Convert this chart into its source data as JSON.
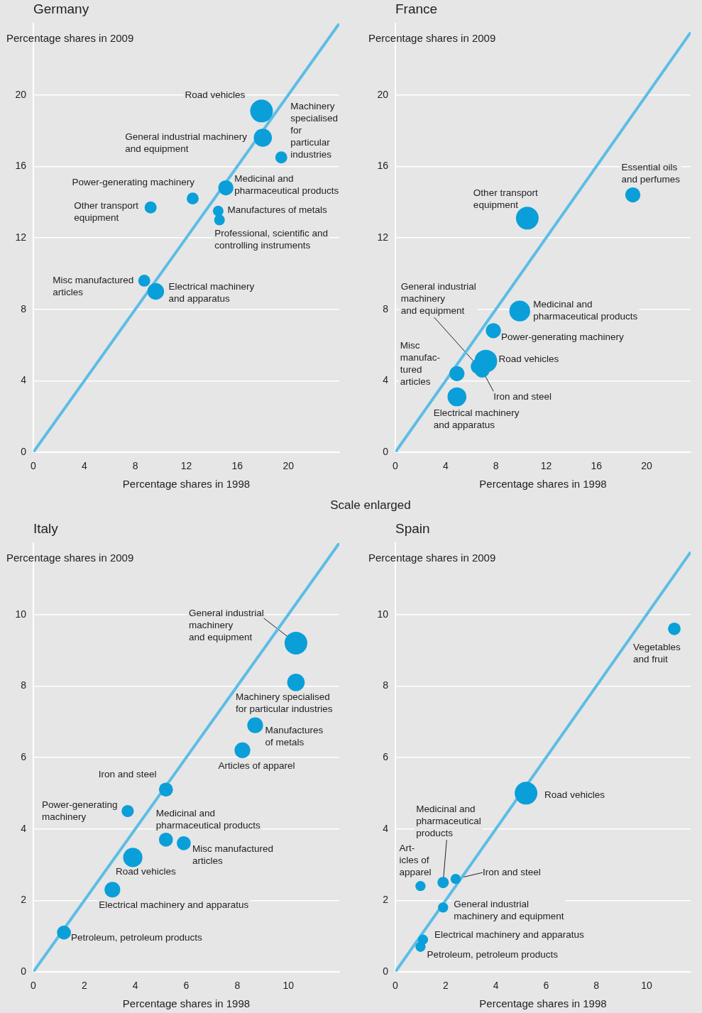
{
  "chart_data": [
    {
      "type": "bubble",
      "title": "Germany",
      "xlabel": "Percentage shares in 1998",
      "ylabel": "Percentage shares in 2009",
      "xlim": [
        0,
        24
      ],
      "ylim": [
        0,
        24
      ],
      "xticks": [
        0,
        4,
        8,
        12,
        16,
        20
      ],
      "yticks": [
        0,
        4,
        8,
        12,
        16,
        20
      ],
      "grid": "y",
      "series": [
        {
          "type": "line",
          "color": "#5cbde5",
          "marker": "none",
          "x": [
            0,
            24
          ],
          "values": [
            0,
            24
          ]
        },
        {
          "type": "bubble",
          "color": "#0a9fd8",
          "x": [
            17.9,
            19.45,
            18.0,
            12.5,
            15.1,
            9.2,
            14.5,
            14.6,
            8.7,
            9.6
          ],
          "values": [
            19.1,
            16.5,
            17.6,
            14.2,
            14.8,
            13.7,
            13.5,
            13.0,
            9.6,
            9.0
          ],
          "sizes": [
            1,
            0.28,
            0.64,
            0.28,
            0.44,
            0.28,
            0.22,
            0.22,
            0.28,
            0.54
          ]
        }
      ],
      "annotations": [
        {
          "text": "Road vehicles",
          "x": 17.9,
          "y": 19.1
        },
        {
          "text": "Machinery\nspecialised\nfor\nparticular\nindustries",
          "x": 19.45,
          "y": 16.5
        },
        {
          "text": "General industrial machinery\nand equipment",
          "x": 18.0,
          "y": 17.6
        },
        {
          "text": "Power-generating machinery",
          "x": 12.5,
          "y": 14.2
        },
        {
          "text": "Medicinal and\npharmaceutical products",
          "x": 15.1,
          "y": 14.8
        },
        {
          "text": "Other transport\nequipment",
          "x": 9.2,
          "y": 13.7
        },
        {
          "text": "Manufactures of metals",
          "x": 14.5,
          "y": 13.5
        },
        {
          "text": "Professional, scientific and\ncontrolling instruments",
          "x": 14.6,
          "y": 13.0
        },
        {
          "text": "Misc manufactured\narticles",
          "x": 8.7,
          "y": 9.6
        },
        {
          "text": "Electrical machinery\nand apparatus",
          "x": 9.6,
          "y": 9.0
        }
      ]
    },
    {
      "type": "bubble",
      "title": "France",
      "xlabel": "Percentage shares in 1998",
      "ylabel": "Percentage shares in 2009",
      "xlim": [
        0,
        23.5
      ],
      "ylim": [
        0,
        24
      ],
      "xticks": [
        0,
        4,
        8,
        12,
        16,
        20
      ],
      "yticks": [
        0,
        4,
        8,
        12,
        16,
        20
      ],
      "grid": "y",
      "series": [
        {
          "type": "line",
          "color": "#5cbde5",
          "marker": "none",
          "x": [
            0,
            23.5
          ],
          "values": [
            0,
            23.5
          ]
        },
        {
          "type": "bubble",
          "color": "#0a9fd8",
          "x": [
            18.9,
            10.5,
            9.9,
            7.8,
            7.2,
            6.6,
            6.9,
            4.9,
            4.9
          ],
          "values": [
            14.4,
            13.1,
            7.9,
            6.8,
            5.1,
            4.8,
            4.6,
            4.4,
            3.1
          ],
          "sizes": [
            0.44,
            1,
            0.84,
            0.44,
            1,
            0.44,
            0.44,
            0.44,
            0.69
          ]
        }
      ],
      "annotations": [
        {
          "text": "Essential oils\nand perfumes",
          "x": 18.9,
          "y": 14.4
        },
        {
          "text": "Other transport\nequipment",
          "x": 10.5,
          "y": 13.1
        },
        {
          "text": "Medicinal and\npharmaceutical products",
          "x": 9.9,
          "y": 7.9
        },
        {
          "text": "Power-generating machinery",
          "x": 7.8,
          "y": 6.8
        },
        {
          "text": "Road vehicles",
          "x": 7.2,
          "y": 5.1
        },
        {
          "text": "General industrial\nmachinery\nand equipment",
          "x": 6.6,
          "y": 4.8
        },
        {
          "text": "Iron and steel",
          "x": 6.9,
          "y": 4.6
        },
        {
          "text": "Misc\nmanufac-\ntured\narticles",
          "x": 4.9,
          "y": 4.4
        },
        {
          "text": "Electrical machinery\nand apparatus",
          "x": 4.9,
          "y": 3.1
        }
      ]
    },
    {
      "type": "bubble",
      "title": "Italy",
      "xlabel": "Percentage shares in 1998",
      "ylabel": "Percentage shares in 2009",
      "xlim": [
        0,
        12
      ],
      "ylim": [
        0,
        12
      ],
      "xticks": [
        0,
        2,
        4,
        6,
        8,
        10
      ],
      "yticks": [
        0,
        2,
        4,
        6,
        8,
        10
      ],
      "grid": "y",
      "series": [
        {
          "type": "line",
          "color": "#5cbde5",
          "marker": "none",
          "x": [
            0,
            12
          ],
          "values": [
            0,
            12
          ]
        },
        {
          "type": "bubble",
          "color": "#0a9fd8",
          "x": [
            10.3,
            10.3,
            8.7,
            8.2,
            5.2,
            3.7,
            5.2,
            5.9,
            3.9,
            3.1,
            1.2
          ],
          "values": [
            9.2,
            8.1,
            6.9,
            6.2,
            5.1,
            4.5,
            3.7,
            3.6,
            3.2,
            2.3,
            1.1
          ],
          "sizes": [
            1,
            0.59,
            0.48,
            0.48,
            0.38,
            0.29,
            0.38,
            0.38,
            0.72,
            0.48,
            0.38
          ]
        }
      ],
      "annotations": [
        "Scale enlarged",
        {
          "text": "General industrial\nmachinery\nand equipment",
          "x": 10.3,
          "y": 9.2
        },
        {
          "text": "Machinery specialised\nfor particular industries",
          "x": 10.3,
          "y": 8.1
        },
        {
          "text": "Manufactures\nof metals",
          "x": 8.7,
          "y": 6.9
        },
        {
          "text": "Articles of apparel",
          "x": 8.2,
          "y": 6.2
        },
        {
          "text": "Iron and steel",
          "x": 5.2,
          "y": 5.1
        },
        {
          "text": "Power-generating\nmachinery",
          "x": 3.7,
          "y": 4.5
        },
        {
          "text": "Medicinal and\npharmaceutical products",
          "x": 5.2,
          "y": 3.7
        },
        {
          "text": "Misc manufactured\narticles",
          "x": 5.9,
          "y": 3.6
        },
        {
          "text": "Road vehicles",
          "x": 3.9,
          "y": 3.2
        },
        {
          "text": "Electrical machinery and apparatus",
          "x": 3.1,
          "y": 2.3
        },
        {
          "text": "Petroleum, petroleum products",
          "x": 1.2,
          "y": 1.1
        }
      ]
    },
    {
      "type": "bubble",
      "title": "Spain",
      "xlabel": "Percentage shares in 1998",
      "ylabel": "Percentage shares in 2009",
      "xlim": [
        0,
        11.75
      ],
      "ylim": [
        0,
        12
      ],
      "xticks": [
        0,
        2,
        4,
        6,
        8,
        10
      ],
      "yticks": [
        0,
        2,
        4,
        6,
        8,
        10
      ],
      "grid": "y",
      "series": [
        {
          "type": "line",
          "color": "#5cbde5",
          "marker": "none",
          "x": [
            0,
            11.75
          ],
          "values": [
            0,
            11.75
          ]
        },
        {
          "type": "bubble",
          "color": "#0a9fd8",
          "x": [
            11.1,
            5.2,
            1.9,
            2.4,
            1.0,
            1.9,
            1.1,
            1.0
          ],
          "values": [
            9.6,
            5.0,
            2.5,
            2.6,
            2.4,
            1.8,
            0.9,
            0.7
          ],
          "sizes": [
            0.31,
            1,
            0.25,
            0.2,
            0.2,
            0.2,
            0.2,
            0.2
          ]
        }
      ],
      "annotations": [
        {
          "text": "Vegetables\nand fruit",
          "x": 11.1,
          "y": 9.6
        },
        {
          "text": "Road vehicles",
          "x": 5.2,
          "y": 5.0
        },
        {
          "text": "Medicinal and\npharmaceutical\nproducts",
          "x": 1.9,
          "y": 2.5
        },
        {
          "text": "Iron and steel",
          "x": 2.4,
          "y": 2.6
        },
        {
          "text": "Art-\nicles of\napparel",
          "x": 1.0,
          "y": 2.4
        },
        {
          "text": "General industrial\nmachinery and equipment",
          "x": 1.9,
          "y": 1.8
        },
        {
          "text": "Electrical machinery and apparatus",
          "x": 1.1,
          "y": 0.9
        },
        {
          "text": "Petroleum, petroleum products",
          "x": 1.0,
          "y": 0.7
        }
      ]
    }
  ]
}
